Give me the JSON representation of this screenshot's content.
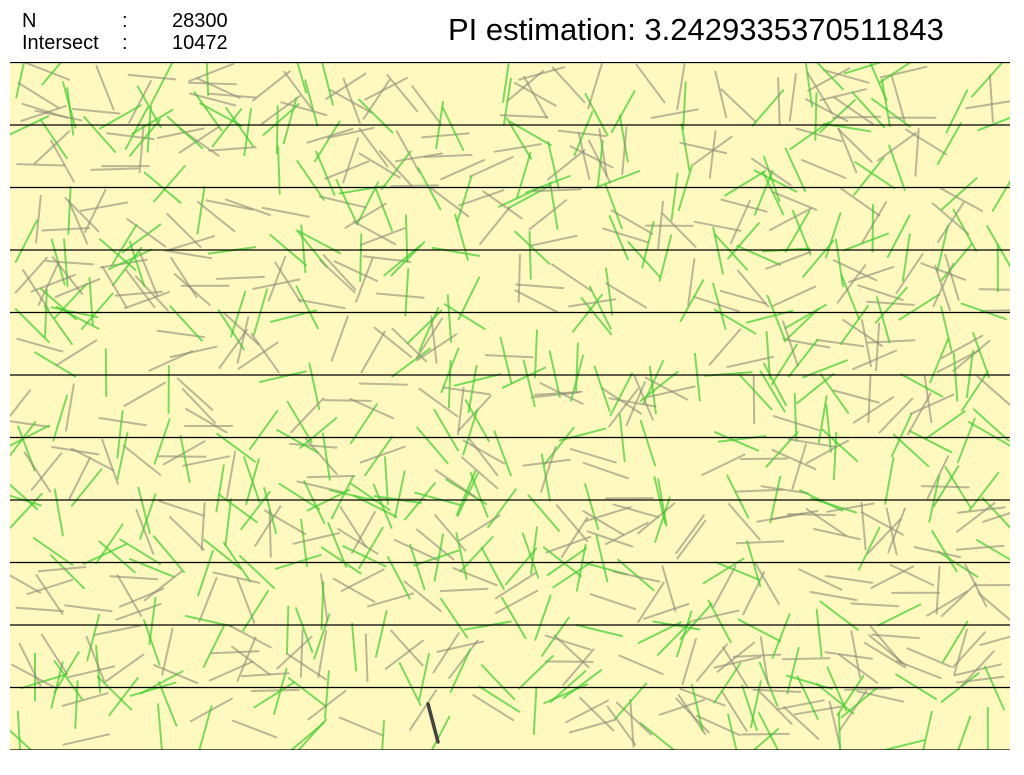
{
  "stats": {
    "n_label": "N",
    "n_separator": ":",
    "n_value": "28300",
    "intersect_label": "Intersect",
    "intersect_separator": ":",
    "intersect_value": "10472"
  },
  "estimate": {
    "label": "PI estimation: ",
    "value": "3.2429335370511843"
  },
  "board": {
    "background_color": "#fff8bf",
    "line_color": "#000000",
    "line_count": 12,
    "needle_count": 900,
    "intersect_ratio": 0.37,
    "needle_length_ratio": 0.75,
    "crossing_color": "#3ecf2e",
    "miss_color": "#8c8c78",
    "latest_color": "#444444"
  }
}
